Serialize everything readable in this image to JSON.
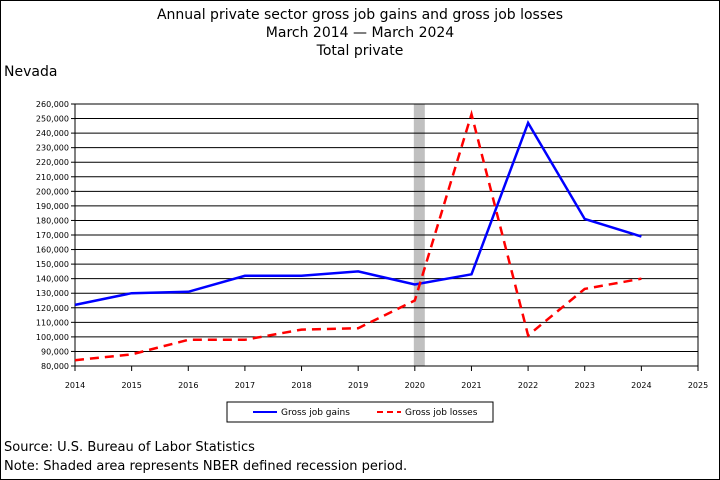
{
  "header": {
    "title_line1": "Annual private sector gross job gains and gross job losses",
    "title_line2": "March 2014 — March 2024",
    "title_line3": "Total private",
    "state": "Nevada"
  },
  "footer": {
    "source": "Source: U.S. Bureau of Labor Statistics",
    "note": "Note: Shaded area represents NBER defined recession period."
  },
  "chart_data": {
    "type": "line",
    "x_ticks": [
      "2014",
      "2015",
      "2016",
      "2017",
      "2018",
      "2019",
      "2020",
      "2021",
      "2022",
      "2023",
      "2024",
      "2025"
    ],
    "y_ticks": [
      "80,000",
      "90,000",
      "100,000",
      "110,000",
      "120,000",
      "130,000",
      "140,000",
      "150,000",
      "160,000",
      "170,000",
      "180,000",
      "190,000",
      "200,000",
      "210,000",
      "220,000",
      "230,000",
      "240,000",
      "250,000",
      "260,000"
    ],
    "xlim": [
      2014,
      2025
    ],
    "ylim": [
      80000,
      260000
    ],
    "grid": "horizontal",
    "legend_position": "bottom",
    "recession": [
      2020.0,
      2020.17
    ],
    "series": [
      {
        "name": "Gross job gains",
        "color": "#0000ff",
        "style": "solid",
        "x": [
          2014,
          2015,
          2016,
          2017,
          2018,
          2019,
          2020,
          2021,
          2022,
          2023,
          2024
        ],
        "values": [
          122000,
          130000,
          131000,
          142000,
          142000,
          145000,
          136000,
          143000,
          247000,
          181000,
          169000
        ]
      },
      {
        "name": "Gross job losses",
        "color": "#ff0000",
        "style": "dashed",
        "x": [
          2014,
          2015,
          2016,
          2017,
          2018,
          2019,
          2020,
          2021,
          2022,
          2023,
          2024
        ],
        "values": [
          84000,
          88000,
          98000,
          98000,
          105000,
          106000,
          125000,
          253000,
          101000,
          133000,
          140000
        ]
      }
    ]
  }
}
